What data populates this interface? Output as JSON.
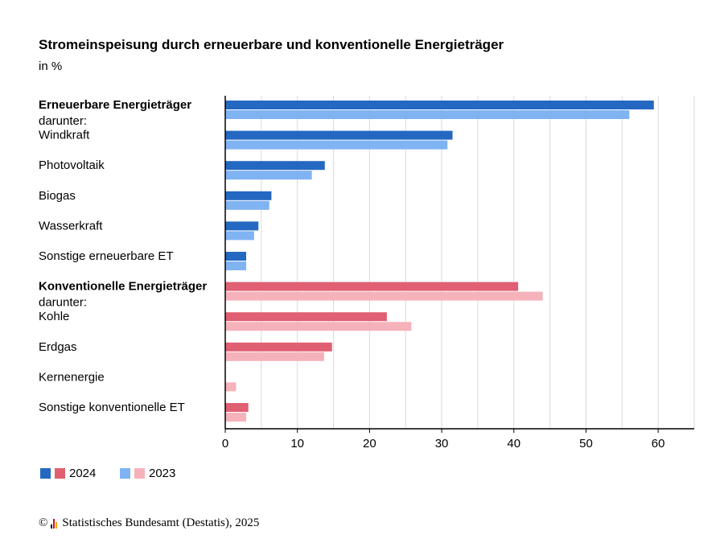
{
  "header": {
    "title": "Stromeinspeisung durch erneuerbare und konventionelle Energieträger",
    "subtitle": "in %"
  },
  "colors": {
    "renewable_2024": "#2468c2",
    "renewable_2023": "#7fb3f2",
    "conventional_2024": "#e05f72",
    "conventional_2023": "#f6b2bb",
    "grid": "#d9d9d9"
  },
  "chart_data": {
    "type": "bar",
    "orientation": "horizontal",
    "title": "Stromeinspeisung durch erneuerbare und konventionelle Energieträger",
    "subtitle": "in %",
    "xlim": [
      0,
      65
    ],
    "xticks": [
      0,
      10,
      20,
      30,
      40,
      50,
      60
    ],
    "grid": true,
    "categories": [
      {
        "label": "Erneuerbare Energieträger",
        "sublabel": "darunter:",
        "bold": true,
        "group": "renewable"
      },
      {
        "label": "Windkraft",
        "group": "renewable"
      },
      {
        "label": "Photovoltaik",
        "group": "renewable"
      },
      {
        "label": "Biogas",
        "group": "renewable"
      },
      {
        "label": "Wasserkraft",
        "group": "renewable"
      },
      {
        "label": "Sonstige erneuerbare ET",
        "group": "renewable"
      },
      {
        "label": "Konventionelle Energieträger",
        "sublabel": "darunter:",
        "bold": true,
        "group": "conventional"
      },
      {
        "label": "Kohle",
        "group": "conventional"
      },
      {
        "label": "Erdgas",
        "group": "conventional"
      },
      {
        "label": "Kernenergie",
        "group": "conventional"
      },
      {
        "label": "Sonstige konventionelle ET",
        "group": "conventional"
      }
    ],
    "series": [
      {
        "name": "2024",
        "values": [
          59.4,
          31.5,
          13.8,
          6.4,
          4.6,
          2.9,
          40.6,
          22.4,
          14.8,
          0,
          3.2
        ]
      },
      {
        "name": "2023",
        "values": [
          56.0,
          30.8,
          12.0,
          6.1,
          4.0,
          2.9,
          44.0,
          25.8,
          13.7,
          1.5,
          2.9
        ]
      }
    ]
  },
  "legend": {
    "items": [
      {
        "label": "2024"
      },
      {
        "label": "2023"
      }
    ]
  },
  "footer": {
    "copyright": "©",
    "source": "Statistisches Bundesamt (Destatis), 2025"
  }
}
